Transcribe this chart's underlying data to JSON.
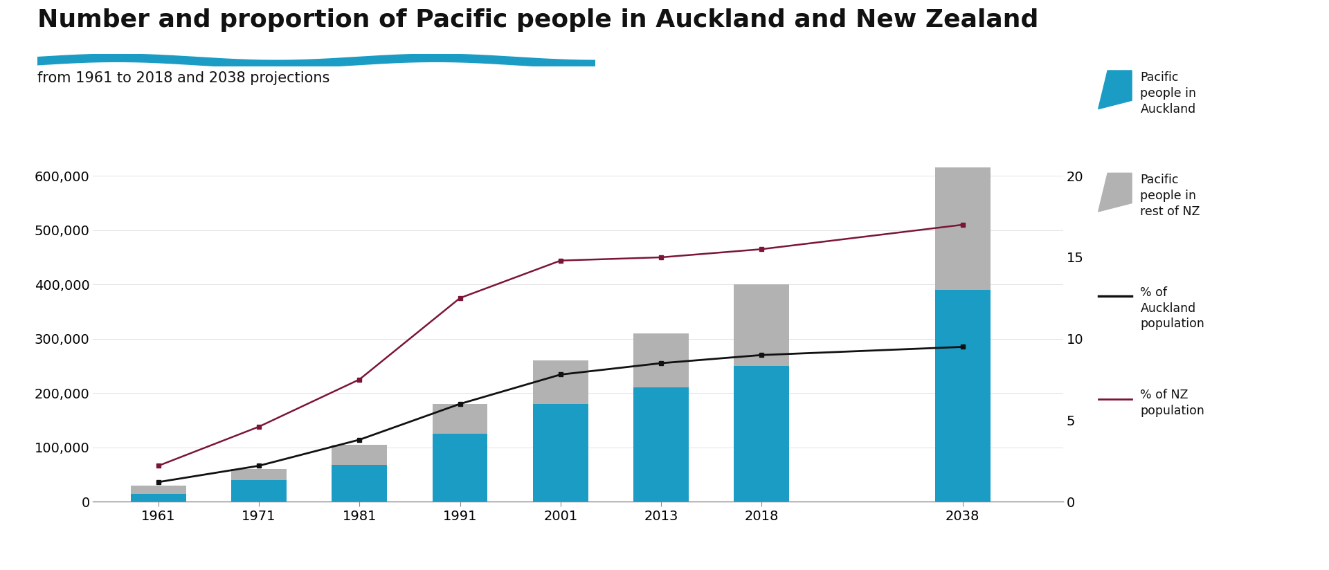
{
  "title": "Number and proportion of Pacific people in Auckland and New Zealand",
  "subtitle": "from 1961 to 2018 and 2038 projections",
  "years": [
    "1961",
    "1971",
    "1981",
    "1991",
    "2001",
    "2013",
    "2018",
    "2038"
  ],
  "x_positions": [
    0,
    1,
    2,
    3,
    4,
    5,
    6,
    8
  ],
  "auckland_pop": [
    14000,
    40000,
    68000,
    125000,
    180000,
    210000,
    250000,
    390000
  ],
  "rest_nz_pop": [
    15000,
    20000,
    37000,
    55000,
    80000,
    100000,
    150000,
    225000
  ],
  "pct_auckland": [
    1.2,
    2.2,
    3.8,
    6.0,
    7.8,
    8.5,
    9.0,
    9.5
  ],
  "pct_nz": [
    2.2,
    4.6,
    7.5,
    12.5,
    14.8,
    15.0,
    15.5,
    17.0
  ],
  "bar_color_auckland": "#1b9cc4",
  "bar_color_rest": "#b2b2b2",
  "line_color_auckland_pct": "#111111",
  "line_color_nz_pct": "#7b1535",
  "background_color": "#ffffff",
  "ylim_left": [
    0,
    630000
  ],
  "ylim_right": [
    0,
    21.0
  ],
  "yticks_left": [
    0,
    100000,
    200000,
    300000,
    400000,
    500000,
    600000
  ],
  "yticks_right": [
    0,
    5,
    10,
    15,
    20
  ],
  "title_fontsize": 26,
  "subtitle_fontsize": 15,
  "tick_fontsize": 14,
  "legend_label_auckland": "Pacific\npeople in\nAuckland",
  "legend_label_rest": "Pacific\npeople in\nrest of NZ",
  "legend_label_pct_auck": "% of\nAuckland\npopulation",
  "legend_label_pct_nz": "% of NZ\npopulation",
  "underline_color": "#1b9cc4",
  "bar_width": 0.55
}
